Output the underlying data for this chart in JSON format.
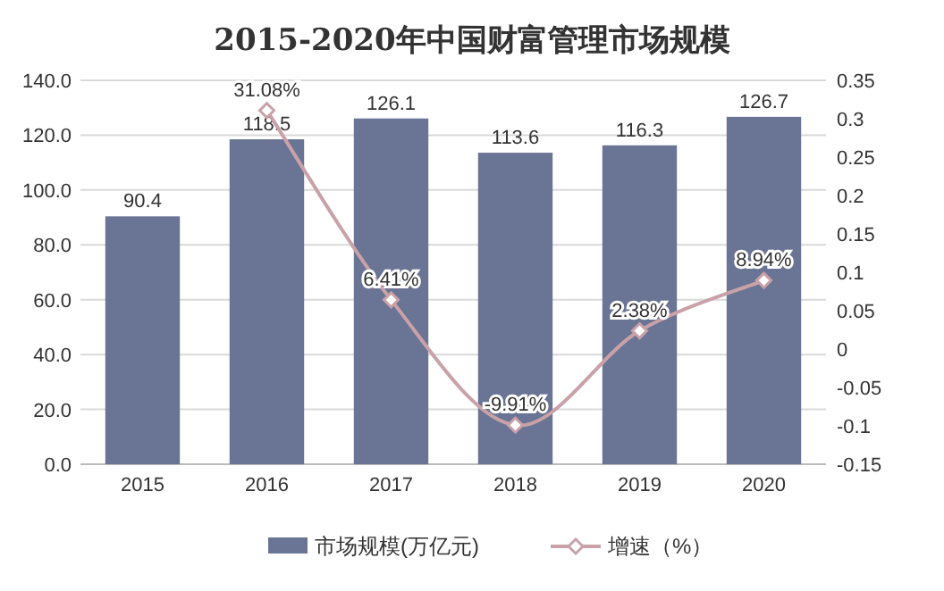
{
  "chart_data": {
    "type": "bar",
    "title": "2015-2020年中国财富管理市场规模",
    "categories": [
      "2015",
      "2016",
      "2017",
      "2018",
      "2019",
      "2020"
    ],
    "series": [
      {
        "name": "市场规模(万亿元)",
        "color": "#6a7494",
        "values": [
          90.4,
          118.5,
          126.1,
          113.6,
          116.3,
          126.7
        ],
        "value_labels": [
          "90.4",
          "118.5",
          "126.1",
          "113.6",
          "116.3",
          "126.7"
        ]
      },
      {
        "name": "增速（%）",
        "type": "line",
        "axis": "y2",
        "color": "#c9a2a8",
        "marker": "diamond",
        "values": [
          null,
          0.3108,
          0.0641,
          -0.0991,
          0.0238,
          0.0894
        ],
        "value_labels": [
          null,
          "31.08%",
          "6.41%",
          "-9.91%",
          "2.38%",
          "8.94%"
        ]
      }
    ],
    "ylim": [
      0,
      140
    ],
    "yticks": [
      {
        "value": 0,
        "label": "0.0"
      },
      {
        "value": 20,
        "label": "20.0"
      },
      {
        "value": 40,
        "label": "40.0"
      },
      {
        "value": 60,
        "label": "60.0"
      },
      {
        "value": 80,
        "label": "80.0"
      },
      {
        "value": 100,
        "label": "100.0"
      },
      {
        "value": 120,
        "label": "120.0"
      },
      {
        "value": 140,
        "label": "140.0"
      }
    ],
    "y2lim": [
      -0.15,
      0.35
    ],
    "y2ticks": [
      -0.15,
      -0.1,
      -0.05,
      0,
      0.05,
      0.1,
      0.15,
      0.2,
      0.25,
      0.3,
      0.35
    ],
    "grid": "y",
    "legend": "bottom"
  }
}
